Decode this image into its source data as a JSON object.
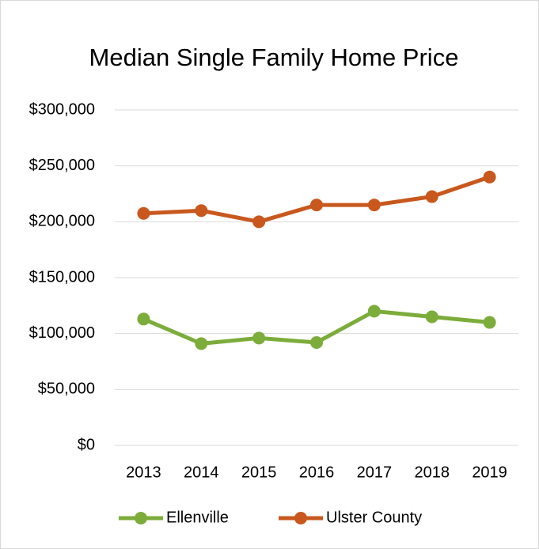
{
  "chart_data": {
    "type": "line",
    "title": "Median Single Family Home Price",
    "categories": [
      "2013",
      "2014",
      "2015",
      "2016",
      "2017",
      "2018",
      "2019"
    ],
    "series": [
      {
        "name": "Ellenville",
        "color": "#7cac3a",
        "values": [
          113000,
          91000,
          96000,
          92000,
          120000,
          115000,
          110000
        ]
      },
      {
        "name": "Ulster County",
        "color": "#c8581d",
        "values": [
          207500,
          210000,
          200000,
          215000,
          215000,
          222500,
          240000
        ]
      }
    ],
    "ylim": [
      0,
      300000
    ],
    "yticks": [
      {
        "value": 0,
        "label": "$0"
      },
      {
        "value": 50000,
        "label": "$50,000"
      },
      {
        "value": 100000,
        "label": "$100,000"
      },
      {
        "value": 150000,
        "label": "$150,000"
      },
      {
        "value": 200000,
        "label": "$200,000"
      },
      {
        "value": 250000,
        "label": "$250,000"
      },
      {
        "value": 300000,
        "label": "$300,000"
      }
    ],
    "grid": true,
    "legend": "bottom"
  }
}
